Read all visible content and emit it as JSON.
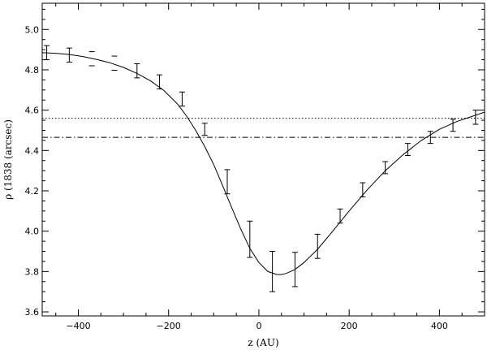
{
  "chart_data": {
    "type": "scatter",
    "title": "",
    "xlabel": "z (AU)",
    "ylabel": "ρ (1838 (arcsec)",
    "xlim": [
      -480,
      500
    ],
    "ylim": [
      3.58,
      5.13
    ],
    "x_ticks": [
      -400,
      -200,
      0,
      200,
      400
    ],
    "x_tick_labels": [
      "−400",
      "−200",
      "0",
      "200",
      "400"
    ],
    "y_ticks": [
      3.6,
      3.8,
      4.0,
      4.2,
      4.4,
      4.6,
      4.8,
      5.0
    ],
    "y_tick_labels": [
      "3.6",
      "3.8",
      "4.0",
      "4.2",
      "4.4",
      "4.6",
      "4.8",
      "5.0"
    ],
    "grid": false,
    "legend": "none",
    "series": [
      {
        "kind": "errorbar",
        "x": [
          -470,
          -420,
          -370,
          -320,
          -270,
          -220,
          -170,
          -120,
          -70,
          -20,
          30,
          80,
          130,
          180,
          230,
          280,
          330,
          380,
          430,
          480
        ],
        "y": [
          4.885,
          4.873,
          4.855,
          4.833,
          4.795,
          4.74,
          4.655,
          4.505,
          4.245,
          3.96,
          3.8,
          3.81,
          3.925,
          4.075,
          4.205,
          4.315,
          4.405,
          4.465,
          4.525,
          4.565
        ],
        "err": [
          0.035,
          0.035,
          0.035,
          0.035,
          0.035,
          0.035,
          0.035,
          0.03,
          0.06,
          0.09,
          0.1,
          0.085,
          0.06,
          0.035,
          0.035,
          0.03,
          0.03,
          0.03,
          0.03,
          0.035
        ],
        "bars_visible": [
          true,
          true,
          false,
          false,
          true,
          true,
          true,
          true,
          true,
          true,
          true,
          true,
          true,
          true,
          true,
          true,
          true,
          true,
          true,
          true
        ]
      },
      {
        "kind": "line",
        "style": "solid",
        "x": [
          -480,
          -450,
          -420,
          -390,
          -360,
          -330,
          -300,
          -270,
          -240,
          -210,
          -180,
          -160,
          -140,
          -120,
          -100,
          -80,
          -60,
          -40,
          -20,
          0,
          20,
          40,
          50,
          60,
          80,
          100,
          130,
          160,
          200,
          240,
          280,
          320,
          360,
          400,
          440,
          480,
          500
        ],
        "y": [
          4.885,
          4.882,
          4.876,
          4.866,
          4.852,
          4.835,
          4.812,
          4.782,
          4.745,
          4.697,
          4.63,
          4.57,
          4.5,
          4.42,
          4.33,
          4.225,
          4.115,
          4.01,
          3.915,
          3.845,
          3.8,
          3.785,
          3.785,
          3.79,
          3.81,
          3.845,
          3.91,
          3.99,
          4.1,
          4.205,
          4.3,
          4.38,
          4.45,
          4.505,
          4.545,
          4.575,
          4.59
        ]
      },
      {
        "kind": "hline",
        "style": "dotted",
        "y": 4.56
      },
      {
        "kind": "hline",
        "style": "dash-dot",
        "y": 4.465
      }
    ]
  }
}
